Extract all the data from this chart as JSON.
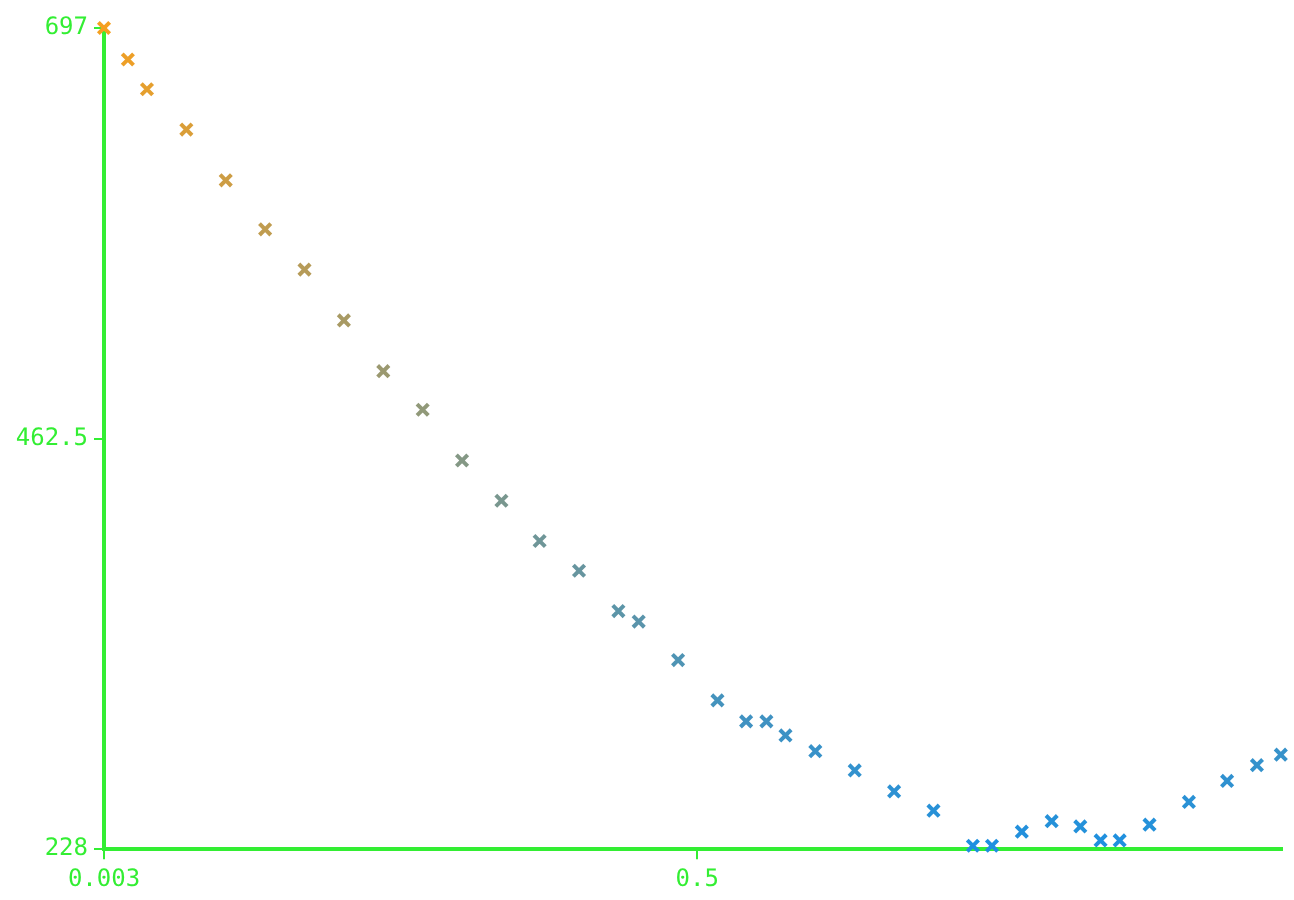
{
  "chart_data": {
    "type": "scatter",
    "marker": "cross",
    "grid": false,
    "x": [
      0.003,
      0.023,
      0.039,
      0.072,
      0.105,
      0.138,
      0.171,
      0.204,
      0.237,
      0.27,
      0.303,
      0.336,
      0.368,
      0.401,
      0.434,
      0.451,
      0.484,
      0.517,
      0.541,
      0.558,
      0.574,
      0.599,
      0.632,
      0.665,
      0.698,
      0.731,
      0.747,
      0.772,
      0.797,
      0.821,
      0.838,
      0.854,
      0.879,
      0.912,
      0.944,
      0.969,
      0.989
    ],
    "values": [
      697,
      679,
      662,
      639,
      610,
      582,
      559,
      530,
      501,
      479,
      450,
      427,
      404,
      387,
      364,
      358,
      336,
      313,
      301,
      301,
      293,
      284,
      273,
      261,
      250,
      230,
      230,
      238,
      244,
      241,
      233,
      233,
      242,
      255,
      267,
      276,
      282
    ],
    "colors": [
      "#f5a020",
      "#ed9f27",
      "#e59f2e",
      "#da9e38",
      "#cd9d44",
      "#c09c4f",
      "#b69b58",
      "#a89a64",
      "#9b9970",
      "#919979",
      "#849885",
      "#79978f",
      "#6f9698",
      "#67959f",
      "#5c95a8",
      "#5a94ab",
      "#4f94b4",
      "#4593bd",
      "#4092c2",
      "#4092c2",
      "#3c92c5",
      "#3892c9",
      "#3392ce",
      "#2d91d3",
      "#2891d7",
      "#1e90e0",
      "#1e90e0",
      "#2390dc",
      "#2591d9",
      "#2491da",
      "#2090de",
      "#2090de",
      "#2491da",
      "#2a91d5",
      "#3091d0",
      "#3492cc",
      "#3792ca"
    ],
    "xlim": [
      0.003,
      0.99
    ],
    "xticks": [
      0.003,
      0.5
    ],
    "ylim": [
      228,
      697
    ],
    "yticks": [
      228,
      462.5,
      697
    ]
  }
}
